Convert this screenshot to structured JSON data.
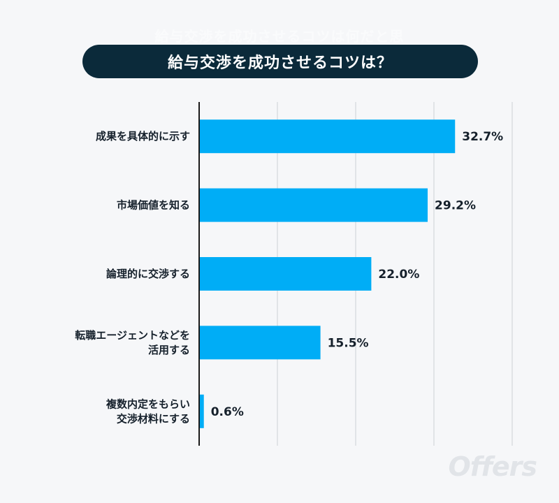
{
  "header": {
    "ghost_title": "給与交渉を成功させるコツは何だと思",
    "title": "給与交渉を成功させるコツは？"
  },
  "watermark": "Offers",
  "colors": {
    "bar": "#00adf6",
    "title_bg": "#0b2a3a",
    "grid": "#dadde1",
    "axis": "#1a1a1a"
  },
  "chart_data": {
    "type": "bar",
    "orientation": "horizontal",
    "title": "給与交渉を成功させるコツは？",
    "unit": "%",
    "categories": [
      [
        "成果を具体的に示す"
      ],
      [
        "市場価値を知る"
      ],
      [
        "論理的に交渉する"
      ],
      [
        "転職エージェントなどを",
        "活用する"
      ],
      [
        "複数内定をもらい",
        "交渉材料にする"
      ]
    ],
    "values": [
      32.7,
      29.2,
      22.0,
      15.5,
      0.6
    ],
    "value_labels": [
      "32.7%",
      "29.2%",
      "22.0%",
      "15.5%",
      "0.6%"
    ],
    "xlim": [
      0,
      40
    ],
    "grid": true
  }
}
